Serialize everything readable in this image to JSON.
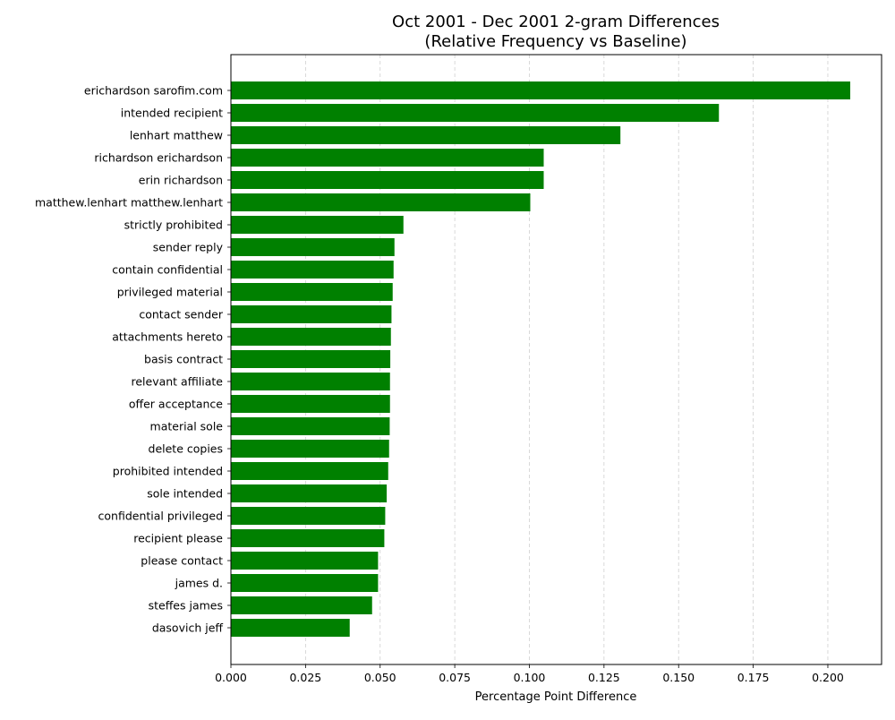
{
  "chart_data": {
    "type": "bar",
    "orientation": "horizontal",
    "title": "Oct 2001 - Dec 2001 2-gram Differences",
    "subtitle": "(Relative Frequency vs Baseline)",
    "xlabel": "Percentage Point Difference",
    "ylabel": "",
    "xlim": [
      0,
      0.218
    ],
    "xticks": [
      "0.000",
      "0.025",
      "0.050",
      "0.075",
      "0.100",
      "0.125",
      "0.150",
      "0.175",
      "0.200"
    ],
    "grid": "x-dashed",
    "bar_color": "#008000",
    "categories": [
      "erichardson sarofim.com",
      "intended recipient",
      "lenhart matthew",
      "richardson erichardson",
      "erin richardson",
      "matthew.lenhart matthew.lenhart",
      "strictly prohibited",
      "sender reply",
      "contain confidential",
      "privileged material",
      "contact sender",
      "attachments hereto",
      "basis contract",
      "relevant affiliate",
      "offer acceptance",
      "material sole",
      "delete copies",
      "prohibited intended",
      "sole intended",
      "confidential privileged",
      "recipient please",
      "please contact",
      "james d.",
      "steffes james",
      "dasovich jeff"
    ],
    "values": [
      0.2075,
      0.1635,
      0.1305,
      0.1048,
      0.1048,
      0.1003,
      0.0578,
      0.0548,
      0.0545,
      0.0542,
      0.0538,
      0.0536,
      0.0534,
      0.0533,
      0.0533,
      0.0532,
      0.053,
      0.0527,
      0.0522,
      0.0517,
      0.0514,
      0.0493,
      0.0493,
      0.0473,
      0.0398
    ]
  }
}
